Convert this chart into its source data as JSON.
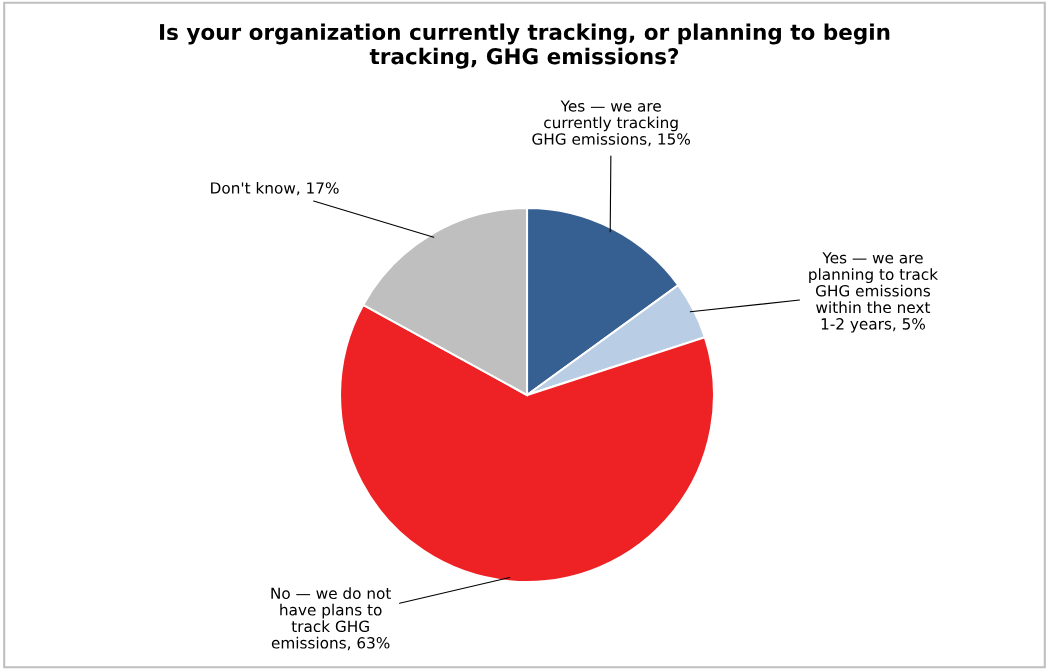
{
  "chart_data": {
    "type": "pie",
    "title": "Is your organization currently tracking, or planning to begin\ntracking, GHG emissions?",
    "categories": [
      "Yes — we are\ncurrently tracking\nGHG emissions",
      "Yes — we are\nplanning to track\nGHG emissions\nwithin the next\n1-2 years",
      "No — we do not\nhave plans to\ntrack GHG\nemissions",
      "Don't know"
    ],
    "values": [
      15,
      5,
      63,
      17
    ],
    "value_labels": [
      "15%",
      "5%",
      "63%",
      "17%"
    ],
    "colors": [
      "#376092",
      "#b9cde5",
      "#ee2225",
      "#bfbfbf"
    ]
  }
}
